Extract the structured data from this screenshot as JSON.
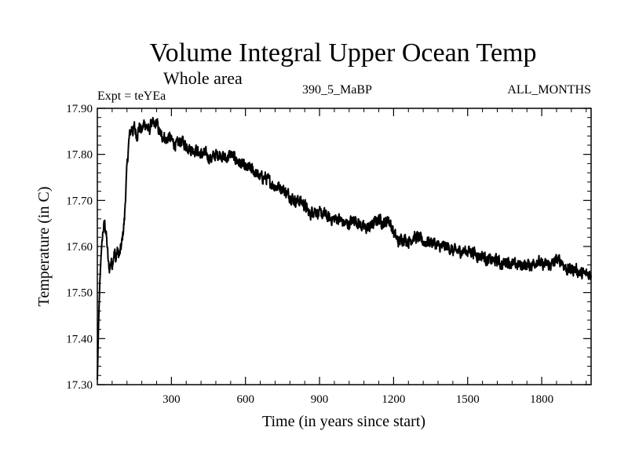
{
  "chart_data": {
    "type": "line",
    "title": "Volume Integral Upper Ocean Temp",
    "subtitle": "Whole area",
    "experiment": "Expt = teYEa",
    "run_label": "390_5_MaBP",
    "season": "ALL_MONTHS",
    "xlabel": "Time (in years since start)",
    "ylabel": "Temperature (in C)",
    "xlim": [
      0,
      2000
    ],
    "ylim": [
      17.3,
      17.9
    ],
    "xticks": [
      300,
      600,
      900,
      1200,
      1500,
      1800
    ],
    "xtick_labels": [
      "300",
      "600",
      "900",
      "1200",
      "1500",
      "1800"
    ],
    "yticks": [
      17.3,
      17.4,
      17.5,
      17.6,
      17.7,
      17.8,
      17.9
    ],
    "ytick_labels": [
      "17.30",
      "17.40",
      "17.50",
      "17.60",
      "17.70",
      "17.80",
      "17.90"
    ],
    "grid": false,
    "series": [
      {
        "name": "Volume integral upper ocean temperature",
        "color": "#000000",
        "x": [
          0,
          5,
          10,
          15,
          20,
          25,
          30,
          35,
          40,
          45,
          50,
          55,
          60,
          65,
          70,
          75,
          80,
          90,
          100,
          110,
          115,
          120,
          125,
          130,
          135,
          140,
          145,
          150,
          160,
          170,
          180,
          190,
          200,
          210,
          220,
          230,
          240,
          250,
          260,
          270,
          280,
          290,
          300,
          320,
          340,
          360,
          380,
          400,
          420,
          440,
          460,
          480,
          500,
          520,
          540,
          560,
          580,
          600,
          620,
          640,
          660,
          680,
          700,
          720,
          740,
          760,
          780,
          800,
          820,
          840,
          860,
          880,
          900,
          920,
          940,
          960,
          980,
          1000,
          1020,
          1040,
          1060,
          1080,
          1100,
          1120,
          1140,
          1160,
          1180,
          1200,
          1220,
          1240,
          1260,
          1280,
          1300,
          1320,
          1340,
          1360,
          1380,
          1400,
          1420,
          1440,
          1460,
          1480,
          1500,
          1520,
          1540,
          1560,
          1580,
          1600,
          1620,
          1640,
          1660,
          1680,
          1700,
          1720,
          1740,
          1760,
          1780,
          1800,
          1820,
          1840,
          1860,
          1880,
          1900,
          1920,
          1940,
          1960,
          1980,
          2000
        ],
        "values": [
          17.31,
          17.43,
          17.52,
          17.58,
          17.62,
          17.64,
          17.65,
          17.63,
          17.6,
          17.56,
          17.55,
          17.57,
          17.56,
          17.58,
          17.59,
          17.57,
          17.59,
          17.58,
          17.61,
          17.66,
          17.72,
          17.77,
          17.81,
          17.84,
          17.85,
          17.86,
          17.85,
          17.86,
          17.84,
          17.86,
          17.85,
          17.87,
          17.86,
          17.85,
          17.87,
          17.86,
          17.87,
          17.85,
          17.84,
          17.84,
          17.83,
          17.84,
          17.83,
          17.82,
          17.83,
          17.82,
          17.81,
          17.81,
          17.8,
          17.8,
          17.79,
          17.8,
          17.8,
          17.79,
          17.8,
          17.79,
          17.78,
          17.77,
          17.77,
          17.76,
          17.75,
          17.75,
          17.74,
          17.73,
          17.73,
          17.72,
          17.71,
          17.7,
          17.7,
          17.69,
          17.67,
          17.68,
          17.67,
          17.67,
          17.66,
          17.66,
          17.66,
          17.65,
          17.65,
          17.66,
          17.65,
          17.64,
          17.64,
          17.65,
          17.66,
          17.65,
          17.66,
          17.63,
          17.61,
          17.62,
          17.61,
          17.62,
          17.62,
          17.61,
          17.61,
          17.61,
          17.6,
          17.6,
          17.6,
          17.59,
          17.59,
          17.59,
          17.59,
          17.59,
          17.58,
          17.58,
          17.57,
          17.57,
          17.57,
          17.56,
          17.57,
          17.56,
          17.56,
          17.56,
          17.56,
          17.56,
          17.57,
          17.56,
          17.56,
          17.56,
          17.57,
          17.57,
          17.55,
          17.55,
          17.55,
          17.54,
          17.54,
          17.54
        ]
      }
    ]
  }
}
